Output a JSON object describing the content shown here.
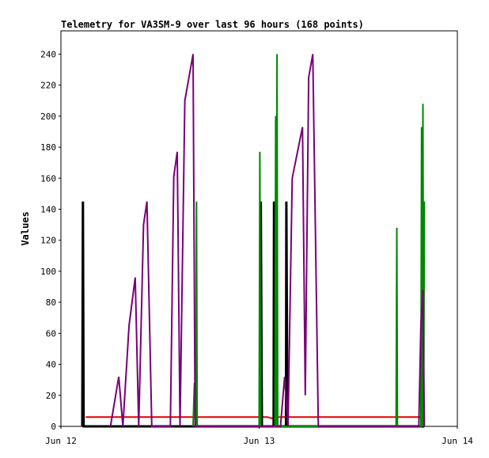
{
  "chart_data": {
    "type": "line",
    "title": "Telemetry for VA3SM-9 over last 96 hours (168 points)",
    "xlabel": "",
    "ylabel": "Values",
    "xlim": [
      "2023-06-12T00:00",
      "2023-06-14T00:00"
    ],
    "ylim": [
      0,
      255
    ],
    "x_ticks": [
      "Jun 12",
      "Jun 13",
      "Jun 14"
    ],
    "y_ticks": [
      0,
      20,
      40,
      60,
      80,
      100,
      120,
      140,
      160,
      180,
      200,
      220,
      240
    ],
    "grid": false,
    "series": [
      {
        "color": "#dd0000",
        "width": 2,
        "points": [
          [
            "2023-06-12T03:00",
            6
          ],
          [
            "2023-06-13T01:00",
            6
          ],
          [
            "2023-06-13T01:40",
            5
          ],
          [
            "2023-06-13T02:00",
            6
          ],
          [
            "2023-06-13T20:00",
            6
          ]
        ]
      },
      {
        "color": "#000000",
        "width": 3,
        "points": [
          [
            "2023-06-12T02:35",
            0
          ],
          [
            "2023-06-12T02:40",
            145
          ],
          [
            "2023-06-12T02:45",
            0
          ],
          [
            "2023-06-13T00:10",
            0
          ],
          [
            "2023-06-13T00:12",
            145
          ],
          [
            "2023-06-13T00:20",
            0
          ],
          [
            "2023-06-13T01:45",
            0
          ],
          [
            "2023-06-13T01:48",
            145
          ],
          [
            "2023-06-13T01:55",
            0
          ],
          [
            "2023-06-13T02:00",
            145
          ],
          [
            "2023-06-13T02:05",
            0
          ],
          [
            "2023-06-13T03:15",
            0
          ],
          [
            "2023-06-13T03:18",
            145
          ],
          [
            "2023-06-13T03:25",
            0
          ],
          [
            "2023-06-13T20:00",
            0
          ]
        ]
      },
      {
        "color": "#008800",
        "width": 2,
        "points": [
          [
            "2023-06-12T16:00",
            0
          ],
          [
            "2023-06-12T16:10",
            28
          ],
          [
            "2023-06-12T16:20",
            0
          ],
          [
            "2023-06-12T16:25",
            145
          ],
          [
            "2023-06-12T16:30",
            0
          ],
          [
            "2023-06-13T00:00",
            0
          ],
          [
            "2023-06-13T00:05",
            177
          ],
          [
            "2023-06-13T00:10",
            0
          ],
          [
            "2023-06-13T01:55",
            0
          ],
          [
            "2023-06-13T02:00",
            200
          ],
          [
            "2023-06-13T02:05",
            0
          ],
          [
            "2023-06-13T02:10",
            240
          ],
          [
            "2023-06-13T02:15",
            0
          ],
          [
            "2023-06-13T16:35",
            0
          ],
          [
            "2023-06-13T16:40",
            128
          ],
          [
            "2023-06-13T16:45",
            0
          ],
          [
            "2023-06-13T19:35",
            0
          ],
          [
            "2023-06-13T19:40",
            193
          ],
          [
            "2023-06-13T19:45",
            0
          ],
          [
            "2023-06-13T19:50",
            208
          ],
          [
            "2023-06-13T19:55",
            0
          ],
          [
            "2023-06-13T20:00",
            145
          ]
        ]
      },
      {
        "color": "#770077",
        "width": 2,
        "points": [
          [
            "2023-06-12T06:00",
            0
          ],
          [
            "2023-06-12T07:00",
            32
          ],
          [
            "2023-06-12T07:30",
            0
          ],
          [
            "2023-06-12T08:15",
            65
          ],
          [
            "2023-06-12T09:00",
            96
          ],
          [
            "2023-06-12T09:25",
            0
          ],
          [
            "2023-06-12T10:00",
            130
          ],
          [
            "2023-06-12T10:25",
            145
          ],
          [
            "2023-06-12T11:00",
            0
          ],
          [
            "2023-06-12T13:15",
            0
          ],
          [
            "2023-06-12T13:40",
            161
          ],
          [
            "2023-06-12T14:05",
            177
          ],
          [
            "2023-06-12T14:25",
            0
          ],
          [
            "2023-06-12T15:00",
            210
          ],
          [
            "2023-06-12T16:00",
            240
          ],
          [
            "2023-06-12T16:15",
            0
          ],
          [
            "2023-06-13T02:35",
            0
          ],
          [
            "2023-06-13T03:05",
            32
          ],
          [
            "2023-06-13T03:30",
            0
          ],
          [
            "2023-06-13T04:00",
            160
          ],
          [
            "2023-06-13T05:15",
            193
          ],
          [
            "2023-06-13T05:35",
            20
          ],
          [
            "2023-06-13T06:00",
            225
          ],
          [
            "2023-06-13T06:30",
            240
          ],
          [
            "2023-06-13T07:10",
            0
          ],
          [
            "2023-06-13T19:20",
            0
          ],
          [
            "2023-06-13T19:35",
            65
          ],
          [
            "2023-06-13T19:50",
            88
          ],
          [
            "2023-06-13T20:00",
            0
          ]
        ]
      }
    ]
  }
}
